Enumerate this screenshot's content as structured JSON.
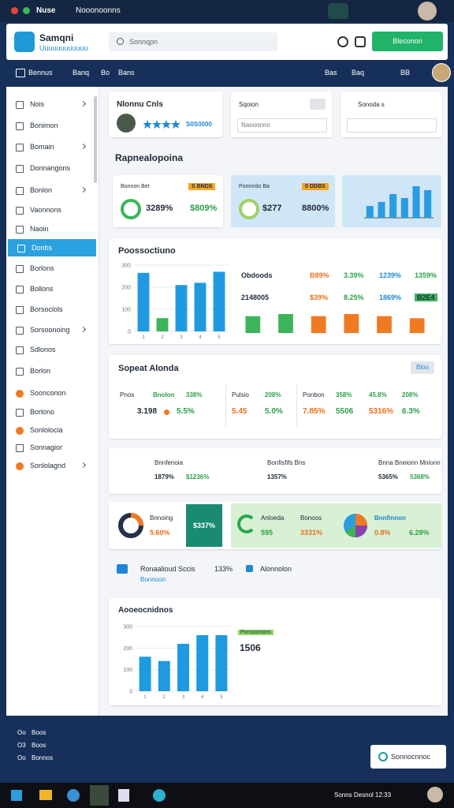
{
  "window": {
    "title": "Nuse",
    "tab": "Nooonoonns"
  },
  "header": {
    "app_name": "Samqni",
    "app_subtitle": "Uuuuuuuuuuuu",
    "search_placeholder": "Sonnqpn",
    "button": "Bleconon"
  },
  "nav": {
    "left": [
      "Bennus",
      "Banq",
      "Bo",
      "Bans"
    ],
    "right": [
      "Bas",
      "Baq",
      "BB"
    ]
  },
  "sidebar": [
    "Nois",
    "Bonimon",
    "Bomain",
    "Donnangons",
    "Bonlon",
    "Vaonnons",
    "Naoin",
    "Donbs",
    "Borlons",
    "Bollons",
    "Borsoclols",
    "Sorsoonoing",
    "Sdlonos",
    "Borlon",
    "Soonconon",
    "Borlono",
    "Sonlolocia",
    "Sonnagior",
    "Sonlolagnd"
  ],
  "profile_card": {
    "title": "Nlonnu Cnls",
    "rating_text": "S0S0000"
  },
  "filter_cards": [
    {
      "title": "Sqoion",
      "value": "Naooonnn"
    },
    {
      "title": "Sonoda s"
    }
  ],
  "section_title": "Rapnealopoina",
  "stat_cards": [
    {
      "label": "Bonnon Bet",
      "badge": "S BNDS",
      "value1": "3289%",
      "value2": "$809%"
    },
    {
      "label": "Pomnrdo Ba",
      "badge": "0 DDBS",
      "value1": "$277",
      "value2": "8800%"
    }
  ],
  "processing": {
    "title": "Poossoctiuno",
    "rows": [
      [
        "Obdoods",
        "B89%",
        "3.39%",
        "1239%",
        "1359%"
      ],
      [
        "2148005",
        "$39%",
        "8.25%",
        "1869%",
        "B2E4"
      ]
    ]
  },
  "report": {
    "title": "Sopeat Alonda",
    "button": "Bloo",
    "columns": [
      {
        "head": [
          "Pnos",
          "Bnolon",
          "338%"
        ],
        "values": [
          "3.198",
          "5.5%"
        ]
      },
      {
        "head": [
          "Pulsio",
          "208%"
        ],
        "values": [
          "5.45",
          "5.0%"
        ]
      },
      {
        "head": [
          "Ponbon",
          "358%",
          "45.8%",
          "208%"
        ],
        "values": [
          "7.85%",
          "5506",
          "5316%",
          "6.3%"
        ]
      }
    ]
  },
  "rings": [
    {
      "title": "Bnnfenoia",
      "v1": "1879%",
      "v2": "$1236%"
    },
    {
      "title": "Bonfisfifs Bns",
      "v1": "1357%"
    },
    {
      "title": "Bnna Bneionn Mnionn",
      "v1": "5365%",
      "v2": "5368%"
    }
  ],
  "highlights": {
    "item1": {
      "title": "Bnnoing",
      "value": "5.60%",
      "badge": "$337%"
    },
    "item2": {
      "title": "Anloeda",
      "sub": "Bonoos",
      "v1": "595",
      "v2": "3331%"
    },
    "item3": {
      "title": "Bnnfinnon",
      "v1": "0.8%",
      "v2": "6.28%"
    }
  },
  "links": {
    "item1": "Ronaalioud Sccis",
    "sub": "Bonnoon",
    "pct": "133%",
    "item2": "Alonnolon"
  },
  "metrics": {
    "title": "Aooeocnidnos",
    "legend": "Ponsoonons",
    "value": "1506"
  },
  "footer": {
    "lines": [
      [
        "Oo",
        "Boos"
      ],
      [
        "O3",
        "Boos"
      ],
      [
        "Oo",
        "Bonnos"
      ]
    ],
    "button": "Sonnocnnoc"
  },
  "taskbar": {
    "clock": "Sonns Desnol 12:33"
  },
  "chart_data": [
    {
      "type": "bar",
      "categories": [
        "1",
        "2",
        "3",
        "4",
        "5"
      ],
      "values": [
        265,
        60,
        210,
        220,
        270
      ],
      "colors": [
        "#1f9ae0",
        "#3cb55a",
        "#1f9ae0",
        "#1f9ae0",
        "#1f9ae0"
      ],
      "ylim": [
        0,
        300
      ],
      "yticks": [
        0,
        100,
        200,
        300
      ],
      "grid": true
    },
    {
      "type": "bar",
      "categories": [
        "1",
        "2",
        "3",
        "4",
        "5"
      ],
      "values": [
        160,
        140,
        220,
        260,
        260
      ],
      "color": "#1f9ae0",
      "ylim": [
        0,
        300
      ],
      "yticks": [
        0,
        100,
        200,
        300
      ],
      "grid": true
    },
    {
      "type": "bar",
      "values": [
        3,
        4,
        6,
        5,
        8,
        7
      ],
      "color": "#2a9de0"
    },
    {
      "type": "bar",
      "values": [
        16,
        18,
        16,
        18,
        16,
        14
      ],
      "colors": [
        "#3cb55a",
        "#3cb55a",
        "#f07a22",
        "#f07a22",
        "#f07a22",
        "#f07a22"
      ]
    }
  ]
}
